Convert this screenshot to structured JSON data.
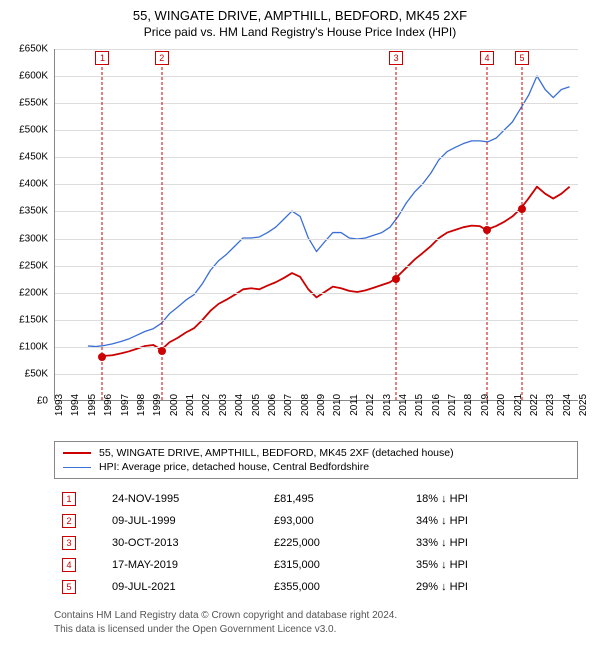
{
  "title": "55, WINGATE DRIVE, AMPTHILL, BEDFORD, MK45 2XF",
  "subtitle": "Price paid vs. HM Land Registry's House Price Index (HPI)",
  "chart": {
    "type": "line",
    "background_color": "#ffffff",
    "grid_color": "#dddddd",
    "axis_color": "#888888",
    "tick_fontsize": 10,
    "y": {
      "min": 0,
      "max": 650000,
      "step": 50000,
      "format_prefix": "£",
      "format_suffix": "K",
      "format_divisor": 1000,
      "labels": [
        "£0",
        "£50K",
        "£100K",
        "£150K",
        "£200K",
        "£250K",
        "£300K",
        "£350K",
        "£400K",
        "£450K",
        "£500K",
        "£550K",
        "£600K",
        "£650K"
      ]
    },
    "x": {
      "min": 1993,
      "max": 2025,
      "step": 1,
      "labels": [
        "1993",
        "1994",
        "1995",
        "1996",
        "1997",
        "1998",
        "1999",
        "2000",
        "2001",
        "2002",
        "2003",
        "2004",
        "2005",
        "2006",
        "2007",
        "2008",
        "2009",
        "2010",
        "2011",
        "2012",
        "2013",
        "2014",
        "2015",
        "2016",
        "2017",
        "2018",
        "2019",
        "2020",
        "2021",
        "2022",
        "2023",
        "2024",
        "2025"
      ]
    },
    "series": [
      {
        "key": "hpi",
        "label": "HPI: Average price, detached house, Central Bedfordshire",
        "color": "#3a6fd8",
        "line_width": 1.3,
        "points": [
          [
            1995.0,
            100000
          ],
          [
            1995.5,
            99000
          ],
          [
            1996.0,
            101000
          ],
          [
            1996.5,
            104000
          ],
          [
            1997.0,
            108000
          ],
          [
            1997.5,
            113000
          ],
          [
            1998.0,
            120000
          ],
          [
            1998.5,
            127000
          ],
          [
            1999.0,
            132000
          ],
          [
            1999.5,
            142000
          ],
          [
            2000.0,
            160000
          ],
          [
            2000.5,
            172000
          ],
          [
            2001.0,
            185000
          ],
          [
            2001.5,
            195000
          ],
          [
            2002.0,
            215000
          ],
          [
            2002.5,
            240000
          ],
          [
            2003.0,
            258000
          ],
          [
            2003.5,
            270000
          ],
          [
            2004.0,
            285000
          ],
          [
            2004.5,
            300000
          ],
          [
            2005.0,
            300000
          ],
          [
            2005.5,
            302000
          ],
          [
            2006.0,
            310000
          ],
          [
            2006.5,
            320000
          ],
          [
            2007.0,
            335000
          ],
          [
            2007.5,
            350000
          ],
          [
            2008.0,
            340000
          ],
          [
            2008.5,
            300000
          ],
          [
            2009.0,
            275000
          ],
          [
            2009.5,
            293000
          ],
          [
            2010.0,
            310000
          ],
          [
            2010.5,
            310000
          ],
          [
            2011.0,
            300000
          ],
          [
            2011.5,
            298000
          ],
          [
            2012.0,
            300000
          ],
          [
            2012.5,
            305000
          ],
          [
            2013.0,
            310000
          ],
          [
            2013.5,
            320000
          ],
          [
            2014.0,
            340000
          ],
          [
            2014.5,
            365000
          ],
          [
            2015.0,
            385000
          ],
          [
            2015.5,
            400000
          ],
          [
            2016.0,
            420000
          ],
          [
            2016.5,
            445000
          ],
          [
            2017.0,
            460000
          ],
          [
            2017.5,
            468000
          ],
          [
            2018.0,
            475000
          ],
          [
            2018.5,
            480000
          ],
          [
            2019.0,
            480000
          ],
          [
            2019.5,
            478000
          ],
          [
            2020.0,
            485000
          ],
          [
            2020.5,
            500000
          ],
          [
            2021.0,
            515000
          ],
          [
            2021.5,
            540000
          ],
          [
            2022.0,
            565000
          ],
          [
            2022.5,
            600000
          ],
          [
            2023.0,
            575000
          ],
          [
            2023.5,
            560000
          ],
          [
            2024.0,
            575000
          ],
          [
            2024.5,
            580000
          ]
        ]
      },
      {
        "key": "property",
        "label": "55, WINGATE DRIVE, AMPTHILL, BEDFORD, MK45 2XF (detached house)",
        "color": "#cc0000",
        "line_width": 1.8,
        "points": [
          [
            1995.9,
            81495
          ],
          [
            1996.5,
            83000
          ],
          [
            1997.0,
            86000
          ],
          [
            1997.5,
            90000
          ],
          [
            1998.0,
            95000
          ],
          [
            1998.5,
            100000
          ],
          [
            1999.0,
            102000
          ],
          [
            1999.5,
            93000
          ],
          [
            2000.0,
            107000
          ],
          [
            2000.5,
            115000
          ],
          [
            2001.0,
            125000
          ],
          [
            2001.5,
            133000
          ],
          [
            2002.0,
            148000
          ],
          [
            2002.5,
            165000
          ],
          [
            2003.0,
            178000
          ],
          [
            2003.5,
            186000
          ],
          [
            2004.0,
            195000
          ],
          [
            2004.5,
            205000
          ],
          [
            2005.0,
            207000
          ],
          [
            2005.5,
            205000
          ],
          [
            2006.0,
            212000
          ],
          [
            2006.5,
            218000
          ],
          [
            2007.0,
            226000
          ],
          [
            2007.5,
            235000
          ],
          [
            2008.0,
            228000
          ],
          [
            2008.5,
            205000
          ],
          [
            2009.0,
            190000
          ],
          [
            2009.5,
            200000
          ],
          [
            2010.0,
            210000
          ],
          [
            2010.5,
            207000
          ],
          [
            2011.0,
            202000
          ],
          [
            2011.5,
            200000
          ],
          [
            2012.0,
            203000
          ],
          [
            2012.5,
            208000
          ],
          [
            2013.0,
            213000
          ],
          [
            2013.5,
            218000
          ],
          [
            2013.83,
            225000
          ],
          [
            2014.5,
            245000
          ],
          [
            2015.0,
            260000
          ],
          [
            2015.5,
            272000
          ],
          [
            2016.0,
            285000
          ],
          [
            2016.5,
            300000
          ],
          [
            2017.0,
            310000
          ],
          [
            2017.5,
            315000
          ],
          [
            2018.0,
            320000
          ],
          [
            2018.5,
            323000
          ],
          [
            2019.0,
            322000
          ],
          [
            2019.38,
            315000
          ],
          [
            2020.0,
            322000
          ],
          [
            2020.5,
            330000
          ],
          [
            2021.0,
            340000
          ],
          [
            2021.52,
            355000
          ],
          [
            2022.0,
            374000
          ],
          [
            2022.5,
            395000
          ],
          [
            2023.0,
            382000
          ],
          [
            2023.5,
            373000
          ],
          [
            2024.0,
            382000
          ],
          [
            2024.5,
            395000
          ]
        ]
      }
    ],
    "sale_markers": {
      "box_border_color": "#cc0000",
      "box_text_color": "#cc0000",
      "vline_color": "#cc0000",
      "dot_color": "#cc0000",
      "items": [
        {
          "n": "1",
          "x": 1995.9,
          "y": 81495
        },
        {
          "n": "2",
          "x": 1999.52,
          "y": 93000
        },
        {
          "n": "3",
          "x": 2013.83,
          "y": 225000
        },
        {
          "n": "4",
          "x": 2019.38,
          "y": 315000
        },
        {
          "n": "5",
          "x": 2021.52,
          "y": 355000
        }
      ]
    }
  },
  "legend": {
    "border_color": "#888888",
    "fontsize": 10.5,
    "items": [
      {
        "color": "#cc0000",
        "width": 2,
        "label": "55, WINGATE DRIVE, AMPTHILL, BEDFORD, MK45 2XF (detached house)"
      },
      {
        "color": "#3a6fd8",
        "width": 1.3,
        "label": "HPI: Average price, detached house, Central Bedfordshire"
      }
    ]
  },
  "sales_table": {
    "marker_border_color": "#cc0000",
    "marker_text_color": "#cc0000",
    "fontsize": 11,
    "rows": [
      {
        "n": "1",
        "date": "24-NOV-1995",
        "price": "£81,495",
        "delta": "18% ↓ HPI"
      },
      {
        "n": "2",
        "date": "09-JUL-1999",
        "price": "£93,000",
        "delta": "34% ↓ HPI"
      },
      {
        "n": "3",
        "date": "30-OCT-2013",
        "price": "£225,000",
        "delta": "33% ↓ HPI"
      },
      {
        "n": "4",
        "date": "17-MAY-2019",
        "price": "£315,000",
        "delta": "35% ↓ HPI"
      },
      {
        "n": "5",
        "date": "09-JUL-2021",
        "price": "£355,000",
        "delta": "29% ↓ HPI"
      }
    ]
  },
  "footer": {
    "line1": "Contains HM Land Registry data © Crown copyright and database right 2024.",
    "line2": "This data is licensed under the Open Government Licence v3.0.",
    "color": "#555555",
    "fontsize": 10
  }
}
